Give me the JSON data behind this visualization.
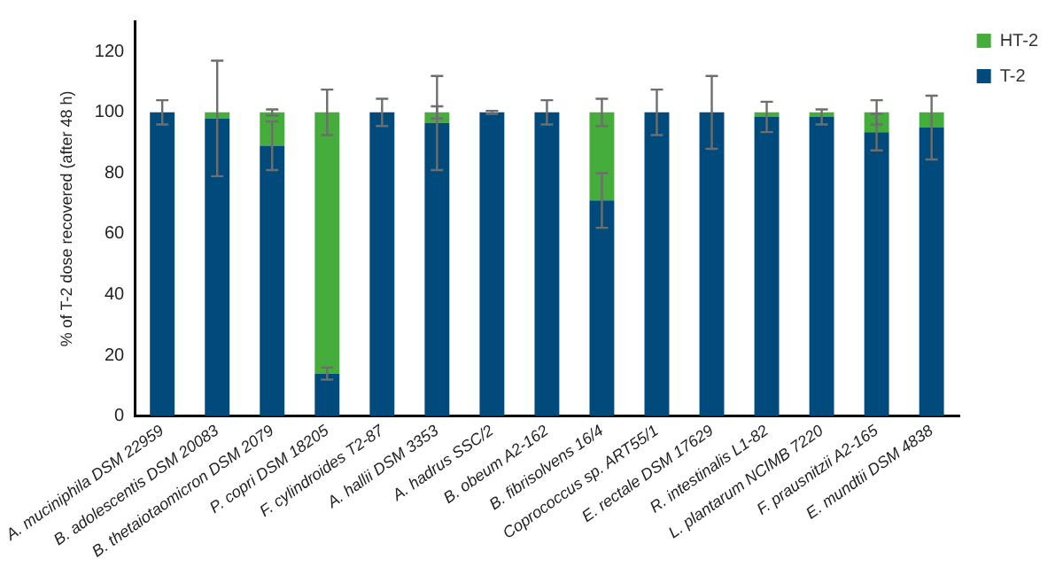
{
  "chart_data": {
    "type": "bar",
    "stacked": true,
    "ylabel": "% of T-2 dose recovered (after 48 h)",
    "categories": [
      "A. muciniphila DSM 22959",
      "B. adolescentis DSM 20083",
      "B. thetaiotaomicron DSM 2079",
      "P. copri DSM 18205",
      "F. cylindroides T2-87",
      "A. hallii DSM 3353",
      "A. hadrus SSC/2",
      "B. obeum A2-162",
      "B. fibrisolvens 16/4",
      "Coprococcus sp. ART55/1",
      "E. rectale DSM 17629",
      "R. intestinalis L1-82",
      "L. plantarum NCIMB 7220",
      "F. prausnitzii A2-165",
      "E. mundtii DSM 4838"
    ],
    "series": [
      {
        "name": "T-2",
        "color": "#004a7c",
        "values": [
          100,
          98,
          89,
          14,
          100,
          96.5,
          100,
          100,
          71,
          100,
          100,
          98.5,
          98.5,
          93.5,
          95
        ],
        "errors": [
          4,
          19,
          8,
          2,
          4.5,
          15.5,
          0.5,
          4,
          9,
          7.5,
          12,
          5,
          2.5,
          6,
          10.5
        ]
      },
      {
        "name": "HT-2",
        "color": "#45ad3c",
        "values": [
          0,
          2,
          11,
          86,
          0,
          3.5,
          0,
          0,
          29,
          0,
          0,
          1.5,
          1.5,
          6.5,
          5
        ],
        "errors": [
          null,
          null,
          1,
          7.5,
          null,
          2,
          null,
          null,
          4.5,
          null,
          null,
          null,
          null,
          4,
          null
        ]
      }
    ],
    "ylim": [
      0,
      130
    ],
    "yticks": [
      0,
      20,
      40,
      60,
      80,
      100,
      120
    ],
    "grid": false,
    "legend": "top right"
  }
}
